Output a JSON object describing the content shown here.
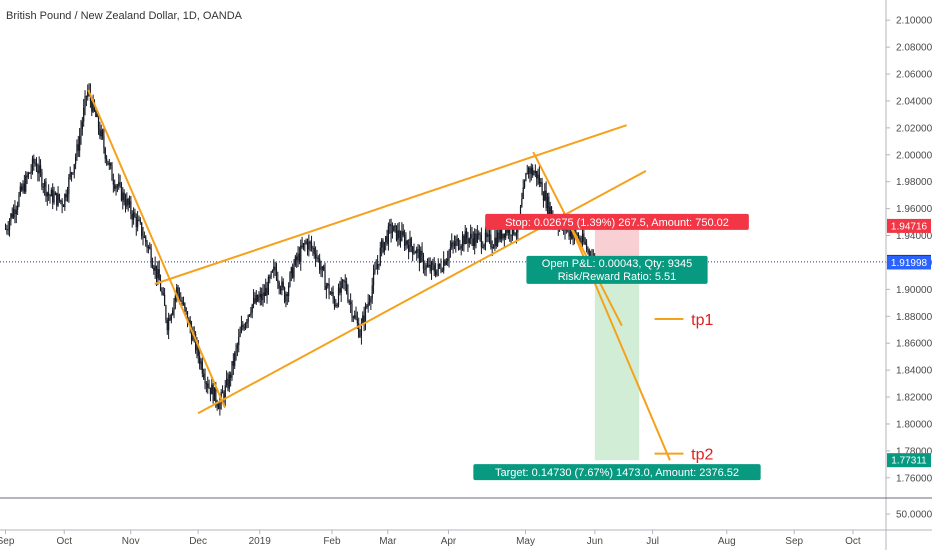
{
  "chart_data": {
    "type": "candlestick",
    "title": "British Pound / New Zealand Dollar, 1D, OANDA",
    "y_axis": {
      "range": [
        1.745,
        2.115
      ],
      "ticks": [
        "2.10000",
        "2.08000",
        "2.06000",
        "2.04000",
        "2.02000",
        "2.00000",
        "1.98000",
        "1.96000",
        "1.94000",
        "1.92000",
        "1.90000",
        "1.88000",
        "1.86000",
        "1.84000",
        "1.82000",
        "1.80000",
        "1.78000",
        "1.76000"
      ],
      "tick_values": [
        2.1,
        2.08,
        2.06,
        2.04,
        2.02,
        2.0,
        1.98,
        1.96,
        1.94,
        1.92,
        1.9,
        1.88,
        1.86,
        1.84,
        1.82,
        1.8,
        1.78,
        1.76
      ]
    },
    "sub_axis": {
      "tick": "50.0000"
    },
    "x_axis": {
      "labels": [
        "Sep",
        "Oct",
        "Nov",
        "Dec",
        "2019",
        "Feb",
        "Mar",
        "Apr",
        "May",
        "Jun",
        "Jul",
        "Aug",
        "Sep",
        "Oct"
      ],
      "label_days": [
        0,
        61,
        130,
        200,
        264,
        339,
        397,
        460,
        540,
        612,
        672,
        749,
        819,
        880
      ]
    },
    "price_path": [
      [
        0,
        1.945
      ],
      [
        15,
        1.97
      ],
      [
        30,
        1.995
      ],
      [
        45,
        1.97
      ],
      [
        60,
        1.965
      ],
      [
        75,
        2.005
      ],
      [
        85,
        2.048
      ],
      [
        95,
        2.025
      ],
      [
        110,
        1.985
      ],
      [
        125,
        1.965
      ],
      [
        140,
        1.945
      ],
      [
        150,
        1.928
      ],
      [
        160,
        1.905
      ],
      [
        168,
        1.875
      ],
      [
        178,
        1.9
      ],
      [
        188,
        1.88
      ],
      [
        200,
        1.852
      ],
      [
        210,
        1.83
      ],
      [
        222,
        1.815
      ],
      [
        232,
        1.832
      ],
      [
        245,
        1.87
      ],
      [
        255,
        1.888
      ],
      [
        268,
        1.895
      ],
      [
        280,
        1.915
      ],
      [
        290,
        1.895
      ],
      [
        300,
        1.918
      ],
      [
        312,
        1.935
      ],
      [
        322,
        1.928
      ],
      [
        332,
        1.905
      ],
      [
        342,
        1.89
      ],
      [
        352,
        1.905
      ],
      [
        362,
        1.88
      ],
      [
        368,
        1.868
      ],
      [
        378,
        1.895
      ],
      [
        390,
        1.93
      ],
      [
        400,
        1.945
      ],
      [
        412,
        1.938
      ],
      [
        425,
        1.93
      ],
      [
        438,
        1.915
      ],
      [
        450,
        1.915
      ],
      [
        462,
        1.93
      ],
      [
        475,
        1.938
      ],
      [
        490,
        1.938
      ],
      [
        505,
        1.935
      ],
      [
        520,
        1.945
      ],
      [
        532,
        1.945
      ],
      [
        542,
        1.99
      ],
      [
        552,
        1.985
      ],
      [
        562,
        1.965
      ],
      [
        572,
        1.95
      ],
      [
        582,
        1.945
      ],
      [
        592,
        1.94
      ],
      [
        600,
        1.935
      ],
      [
        608,
        1.925
      ],
      [
        612,
        1.92
      ]
    ],
    "drawings": [
      {
        "kind": "line",
        "from": [
          86,
          2.048
        ],
        "to": [
          228,
          1.812
        ]
      },
      {
        "kind": "line",
        "from": [
          155,
          1.904
        ],
        "to": [
          645,
          2.022
        ]
      },
      {
        "kind": "line",
        "from": [
          200,
          1.808
        ],
        "to": [
          665,
          1.988
        ]
      },
      {
        "kind": "line",
        "from": [
          548,
          2.002
        ],
        "to": [
          640,
          1.873
        ]
      },
      {
        "kind": "line",
        "from": [
          588,
          1.945
        ],
        "to": [
          690,
          1.773
        ]
      }
    ],
    "horizontal_line": 1.92041,
    "price_tags": [
      {
        "label": "1.94716",
        "value": 1.94716,
        "color": "#f23645"
      },
      {
        "label": "1.92041",
        "value": 1.92041,
        "color": "#131722"
      },
      {
        "label": "1.91998",
        "value": 1.91998,
        "color": "#2962ff"
      },
      {
        "label": "1.77311",
        "value": 1.77311,
        "color": "#089981"
      }
    ],
    "position": {
      "entry": 1.92041,
      "stop": 1.94716,
      "target": 1.77311,
      "day_from": 612,
      "day_to": 658,
      "stop_text": "Stop: 0.02675 (1.39%) 267.5, Amount: 750.02",
      "info_text_1": "Open P&L: 0.00043, Qty: 9345",
      "info_text_2": "Risk/Reward Ratio: 5.51",
      "target_text": "Target: 0.14730 (7.67%) 1473.0, Amount: 2376.52"
    },
    "annotations": [
      {
        "text": "tp1",
        "value": 1.878,
        "day": 712
      },
      {
        "text": "tp2",
        "value": 1.778,
        "day": 712
      }
    ]
  }
}
